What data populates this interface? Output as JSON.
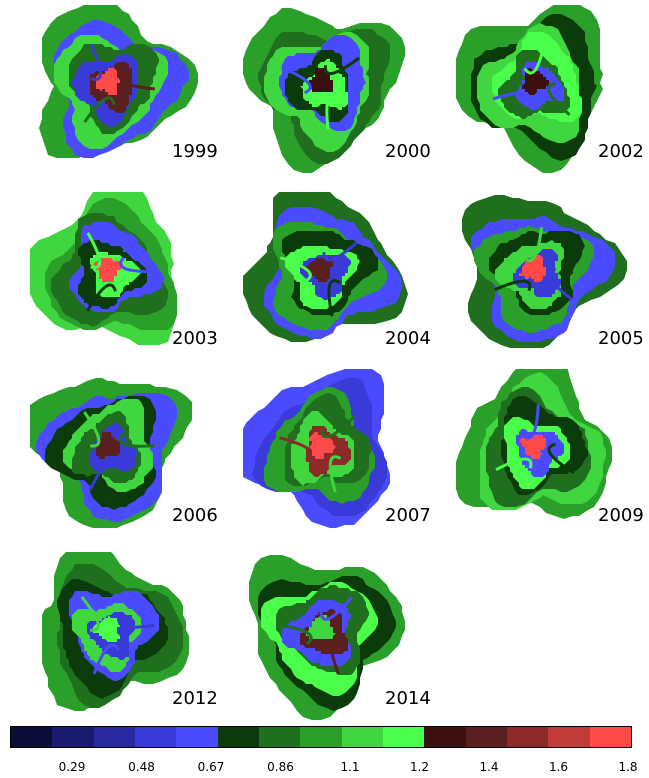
{
  "panels": [
    {
      "year": "1999",
      "colors": [
        "#2aa02a",
        "#4a4aff",
        "#3fd63f",
        "#1f6f1f",
        "#3a3ad9",
        "#5a1f1f",
        "#ff4a4a"
      ]
    },
    {
      "year": "2000",
      "colors": [
        "#2aa02a",
        "#1f6f1f",
        "#3fd63f",
        "#4a4aff",
        "#0b3b0b",
        "#4aff4a",
        "#3a1010"
      ]
    },
    {
      "year": "2002",
      "colors": [
        "#2aa02a",
        "#0b3b0b",
        "#3fd63f",
        "#4aff4a",
        "#1f6f1f",
        "#4a4aff",
        "#3a1010"
      ]
    },
    {
      "year": "2003",
      "colors": [
        "#3fd63f",
        "#2aa02a",
        "#1f6f1f",
        "#4a4aff",
        "#0b3b0b",
        "#4aff4a",
        "#ff4a4a"
      ]
    },
    {
      "year": "2004",
      "colors": [
        "#1f6f1f",
        "#4a4aff",
        "#2aa02a",
        "#0b3b0b",
        "#4aff4a",
        "#3a3ad9",
        "#5a1f1f"
      ]
    },
    {
      "year": "2005",
      "colors": [
        "#1f6f1f",
        "#4a4aff",
        "#2aa02a",
        "#0b3b0b",
        "#3fd63f",
        "#3a3ad9",
        "#ff4a4a"
      ]
    },
    {
      "year": "2006",
      "colors": [
        "#2aa02a",
        "#4a4aff",
        "#0b3b0b",
        "#3fd63f",
        "#1f6f1f",
        "#3a3ad9",
        "#5a1f1f"
      ]
    },
    {
      "year": "2007",
      "colors": [
        "#4a4aff",
        "#3a3ad9",
        "#2aa02a",
        "#1f6f1f",
        "#3fd63f",
        "#8c2a2a",
        "#ff4a4a"
      ]
    },
    {
      "year": "2009",
      "colors": [
        "#2aa02a",
        "#3fd63f",
        "#1f6f1f",
        "#0b3b0b",
        "#4aff4a",
        "#4a4aff",
        "#ff4a4a"
      ]
    },
    {
      "year": "2012",
      "colors": [
        "#2aa02a",
        "#1f6f1f",
        "#0b3b0b",
        "#4a4aff",
        "#3fd63f",
        "#3a3ad9",
        "#4aff4a"
      ]
    },
    {
      "year": "2014",
      "colors": [
        "#2aa02a",
        "#0b3b0b",
        "#4aff4a",
        "#1f6f1f",
        "#4a4aff",
        "#5a1f1f",
        "#3fd63f"
      ]
    }
  ],
  "colorbar": {
    "colors": [
      "#0d0d3a",
      "#1a1a6e",
      "#2a2aa0",
      "#3a3ad9",
      "#4a4aff",
      "#0b3b0b",
      "#1f6f1f",
      "#2aa02a",
      "#3fd63f",
      "#4aff4a",
      "#3a1010",
      "#5a1f1f",
      "#8c2a2a",
      "#c23a3a",
      "#ff4a4a"
    ],
    "ticks": [
      "0.29",
      "0.48",
      "0.67",
      "0.86",
      "1.1",
      "1.2",
      "1.4",
      "1.6",
      "1.8"
    ]
  }
}
